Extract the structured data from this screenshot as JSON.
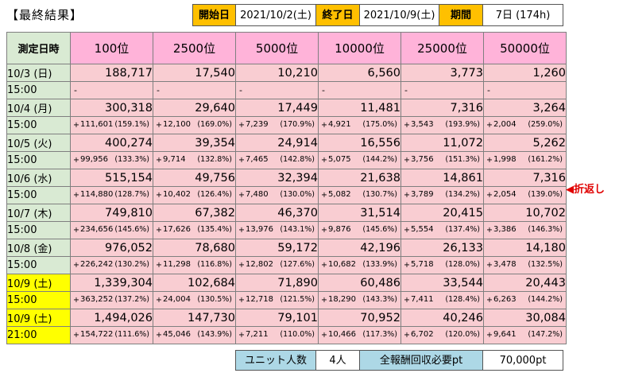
{
  "header": {
    "title": "【最終結果】",
    "start_label": "開始日",
    "start_value": "2021/10/2(土)",
    "end_label": "終了日",
    "end_value": "2021/10/9(土)",
    "period_label": "期間",
    "period_value": "7日 (174h)"
  },
  "table": {
    "corner": "測定日時",
    "columns": [
      "100位",
      "2500位",
      "5000位",
      "10000位",
      "25000位",
      "50000位"
    ],
    "rows": [
      {
        "date": "10/3 (日)",
        "time": "15:00",
        "highlight": false,
        "values": [
          "188,717",
          "17,540",
          "10,210",
          "6,560",
          "3,773",
          "1,260"
        ],
        "diffs": [],
        "pcts": []
      },
      {
        "date": "10/4 (月)",
        "time": "15:00",
        "highlight": false,
        "values": [
          "300,318",
          "29,640",
          "17,449",
          "11,481",
          "7,316",
          "3,264"
        ],
        "diffs": [
          "111,601",
          "12,100",
          "7,239",
          "4,921",
          "3,543",
          "2,004"
        ],
        "pcts": [
          "(159.1%)",
          "(169.0%)",
          "(170.9%)",
          "(175.0%)",
          "(193.9%)",
          "(259.0%)"
        ]
      },
      {
        "date": "10/5 (火)",
        "time": "15:00",
        "highlight": false,
        "values": [
          "400,274",
          "39,354",
          "24,914",
          "16,556",
          "11,072",
          "5,262"
        ],
        "diffs": [
          "99,956",
          "9,714",
          "7,465",
          "5,075",
          "3,756",
          "1,998"
        ],
        "pcts": [
          "(133.3%)",
          "(132.8%)",
          "(142.8%)",
          "(144.2%)",
          "(151.3%)",
          "(161.2%)"
        ]
      },
      {
        "date": "10/6 (水)",
        "time": "15:00",
        "highlight": false,
        "values": [
          "515,154",
          "49,756",
          "32,394",
          "21,638",
          "14,861",
          "7,316"
        ],
        "diffs": [
          "114,880",
          "10,402",
          "7,480",
          "5,082",
          "3,789",
          "2,054"
        ],
        "pcts": [
          "(128.7%)",
          "(126.4%)",
          "(130.0%)",
          "(130.7%)",
          "(134.2%)",
          "(139.0%)"
        ]
      },
      {
        "date": "10/7 (木)",
        "time": "15:00",
        "highlight": false,
        "values": [
          "749,810",
          "67,382",
          "46,370",
          "31,514",
          "20,415",
          "10,702"
        ],
        "diffs": [
          "234,656",
          "17,626",
          "13,976",
          "9,876",
          "5,554",
          "3,386"
        ],
        "pcts": [
          "(145.6%)",
          "(135.4%)",
          "(143.1%)",
          "(145.6%)",
          "(137.4%)",
          "(146.3%)"
        ]
      },
      {
        "date": "10/8 (金)",
        "time": "15:00",
        "highlight": false,
        "values": [
          "976,052",
          "78,680",
          "59,172",
          "42,196",
          "26,133",
          "14,180"
        ],
        "diffs": [
          "226,242",
          "11,298",
          "12,802",
          "10,682",
          "5,718",
          "3,478"
        ],
        "pcts": [
          "(130.2%)",
          "(116.8%)",
          "(127.6%)",
          "(133.9%)",
          "(128.0%)",
          "(132.5%)"
        ]
      },
      {
        "date": "10/9 (土)",
        "time": "15:00",
        "highlight": true,
        "values": [
          "1,339,304",
          "102,684",
          "71,890",
          "60,486",
          "33,544",
          "20,443"
        ],
        "diffs": [
          "363,252",
          "24,004",
          "12,718",
          "18,290",
          "7,411",
          "6,263"
        ],
        "pcts": [
          "(137.2%)",
          "(130.5%)",
          "(121.5%)",
          "(143.3%)",
          "(128.4%)",
          "(144.2%)"
        ]
      },
      {
        "date": "10/9 (土)",
        "time": "21:00",
        "highlight": true,
        "values": [
          "1,494,026",
          "147,730",
          "79,101",
          "70,952",
          "40,246",
          "30,084"
        ],
        "diffs": [
          "154,722",
          "45,046",
          "7,211",
          "10,466",
          "6,702",
          "9,641"
        ],
        "pcts": [
          "(111.6%)",
          "(143.9%)",
          "(110.0%)",
          "(117.3%)",
          "(120.0%)",
          "(147.2%)"
        ]
      }
    ],
    "first_row_placeholder": "-",
    "plus_sign": "+"
  },
  "marker": "◀折返し",
  "footer": {
    "unit_label": "ユニット人数",
    "unit_value": "4人",
    "reward_label": "全報酬回収必要pt",
    "reward_value": "70,000pt"
  },
  "colors": {
    "header_label": "#ffc000",
    "rank_header": "#ffb3d9",
    "cell_bg": "#f9cdd2",
    "date_bg": "#d9ead3",
    "date_highlight": "#ffff00",
    "footer_label": "#add8e6",
    "marker": "#e00000"
  }
}
